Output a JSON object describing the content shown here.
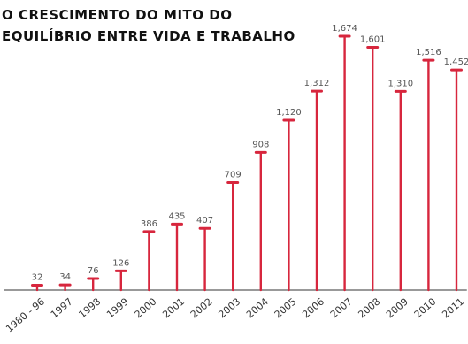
{
  "chart_data": {
    "type": "bar",
    "title": "O crescimento do mito do\nequilíbrio entre vida e trabalho",
    "xlabel": "",
    "ylabel": "",
    "ylim": [
      0,
      1750
    ],
    "categories": [
      "1980 - 96",
      "1997",
      "1998",
      "1999",
      "2000",
      "2001",
      "2002",
      "2003",
      "2004",
      "2005",
      "2006",
      "2007",
      "2008",
      "2009",
      "2010",
      "2011"
    ],
    "values": [
      32,
      34,
      76,
      126,
      386,
      435,
      407,
      709,
      908,
      1120,
      1312,
      1674,
      1601,
      1310,
      1516,
      1452
    ],
    "value_labels": [
      "32",
      "34",
      "76",
      "126",
      "386",
      "435",
      "407",
      "709",
      "908",
      "1,120",
      "1,312",
      "1,674",
      "1,601",
      "1,310",
      "1,516",
      "1,452"
    ],
    "grid": false,
    "bar_color": "#d7263d",
    "axis_color": "#999999",
    "text_color": "#555555"
  }
}
